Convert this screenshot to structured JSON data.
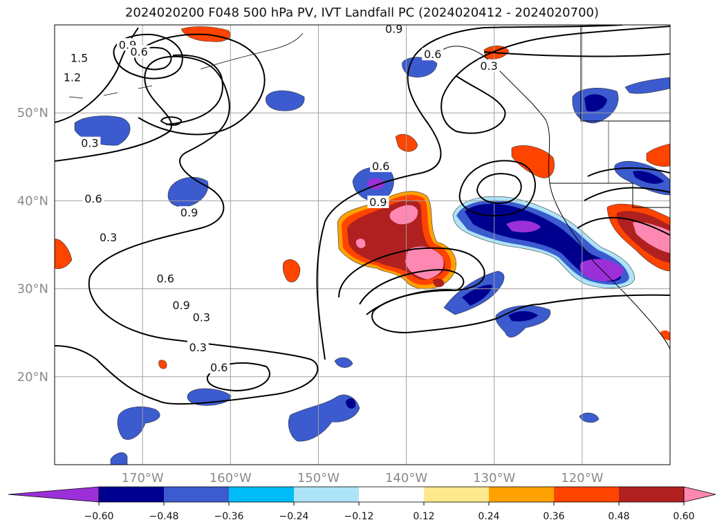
{
  "title": "2024020200 F048 500 hPa PV, IVT Landfall PC (2024020412 - 2024020700)",
  "map": {
    "lon_range": [
      -180,
      -110
    ],
    "lat_range": [
      10,
      60
    ],
    "lon_ticks": [
      {
        "value": -170,
        "label": "170°W"
      },
      {
        "value": -160,
        "label": "160°W"
      },
      {
        "value": -150,
        "label": "150°W"
      },
      {
        "value": -140,
        "label": "140°W"
      },
      {
        "value": -130,
        "label": "130°W"
      },
      {
        "value": -120,
        "label": "120°W"
      }
    ],
    "lat_ticks": [
      {
        "value": 20,
        "label": "20°N"
      },
      {
        "value": 30,
        "label": "30°N"
      },
      {
        "value": 40,
        "label": "40°N"
      },
      {
        "value": 50,
        "label": "50°N"
      }
    ],
    "grid": true,
    "contour_labels": [
      {
        "text": "1.5",
        "lon": -177.2,
        "lat": 56.2
      },
      {
        "text": "1.2",
        "lon": -178.0,
        "lat": 54.0
      },
      {
        "text": "0.9",
        "lon": -171.7,
        "lat": 57.7
      },
      {
        "text": "0.6",
        "lon": -170.4,
        "lat": 56.9
      },
      {
        "text": "0.3",
        "lon": -176.0,
        "lat": 46.5
      },
      {
        "text": "0.9",
        "lon": -141.4,
        "lat": 59.5
      },
      {
        "text": "0.6",
        "lon": -137.0,
        "lat": 56.6
      },
      {
        "text": "0.3",
        "lon": -130.6,
        "lat": 55.3
      },
      {
        "text": "0.6",
        "lon": -142.9,
        "lat": 43.9
      },
      {
        "text": "0.9",
        "lon": -143.2,
        "lat": 39.8
      },
      {
        "text": "0.6",
        "lon": -167.4,
        "lat": 31.1
      },
      {
        "text": "0.9",
        "lon": -165.6,
        "lat": 28.1
      },
      {
        "text": "0.3",
        "lon": -163.3,
        "lat": 26.7
      },
      {
        "text": "0.3",
        "lon": -163.7,
        "lat": 23.3
      },
      {
        "text": "0.6",
        "lon": -161.3,
        "lat": 21.0
      },
      {
        "text": "0.9",
        "lon": -164.7,
        "lat": 38.6
      },
      {
        "text": "0.6",
        "lon": -175.6,
        "lat": 40.2
      },
      {
        "text": "0.3",
        "lon": -173.9,
        "lat": 35.8
      }
    ],
    "field_colors": {
      "neg_ramp": [
        "#aee4f8",
        "#00bcf6",
        "#3b5bcf",
        "#00008f",
        "#9b30d8"
      ],
      "pos_ramp": [
        "#fde88d",
        "#ffa100",
        "#ff4400",
        "#b02020",
        "#ff88b2"
      ]
    }
  },
  "colorbar": {
    "levels": [
      -0.6,
      -0.48,
      -0.36,
      -0.24,
      -0.12,
      0.12,
      0.24,
      0.36,
      0.48,
      0.6
    ],
    "labels": [
      "−0.60",
      "−0.48",
      "−0.36",
      "−0.24",
      "−0.12",
      "0.12",
      "0.24",
      "0.36",
      "0.48",
      "0.60"
    ],
    "colors": [
      "#9b30d8",
      "#00008f",
      "#3b5bcf",
      "#00bcf6",
      "#aee4f8",
      "#ffffff",
      "#fde88d",
      "#ffa100",
      "#ff4400",
      "#b02020",
      "#ff88b2"
    ],
    "extend": "both"
  }
}
